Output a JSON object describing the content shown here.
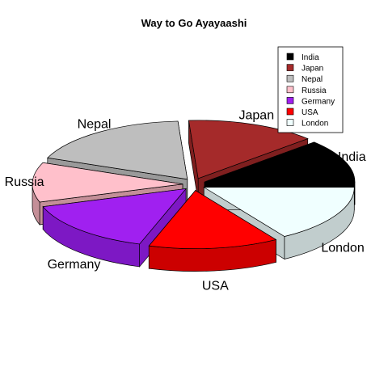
{
  "chart_data": {
    "type": "pie",
    "title": "Way to Go Ayayaashi",
    "slices": [
      {
        "label": "India",
        "value": 12,
        "color": "#000000",
        "side_color": "#000000"
      },
      {
        "label": "Japan",
        "value": 14,
        "color": "#a52a2a",
        "side_color": "#7f1f1f"
      },
      {
        "label": "Nepal",
        "value": 18,
        "color": "#bebebe",
        "side_color": "#9a9a9a"
      },
      {
        "label": "Russia",
        "value": 11,
        "color": "#ffc0cb",
        "side_color": "#c48f98"
      },
      {
        "label": "Germany",
        "value": 15,
        "color": "#a020f0",
        "side_color": "#7d18c4"
      },
      {
        "label": "USA",
        "value": 14,
        "color": "#ff0000",
        "side_color": "#cc0000"
      },
      {
        "label": "London",
        "value": 16,
        "color": "#f0ffff",
        "side_color": "#c1cdcd"
      }
    ],
    "legend": {
      "placement": "top-right",
      "entries": [
        "India",
        "Japan",
        "Nepal",
        "Russia",
        "Germany",
        "USA",
        "London"
      ]
    }
  }
}
